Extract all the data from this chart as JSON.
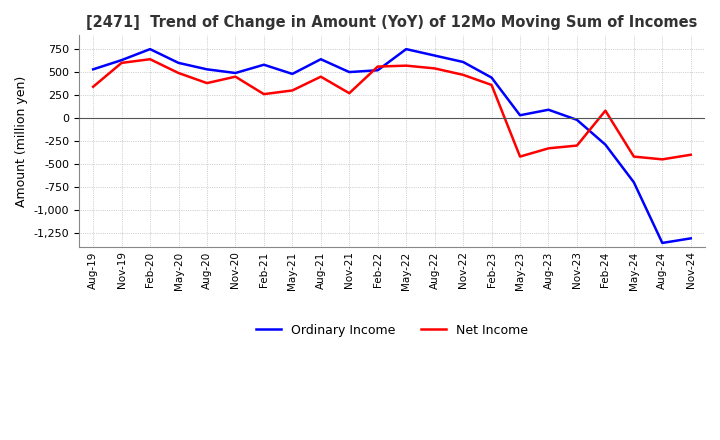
{
  "title": "[2471]  Trend of Change in Amount (YoY) of 12Mo Moving Sum of Incomes",
  "ylabel": "Amount (million yen)",
  "ylim": [
    -1400,
    900
  ],
  "yticks": [
    750,
    500,
    250,
    0,
    -250,
    -500,
    -750,
    -1000,
    -1250
  ],
  "background_color": "#ffffff",
  "grid_color": "#aaaaaa",
  "ordinary_income_color": "#0000ff",
  "net_income_color": "#ff0000",
  "x_labels": [
    "Aug-19",
    "Nov-19",
    "Feb-20",
    "May-20",
    "Aug-20",
    "Nov-20",
    "Feb-21",
    "May-21",
    "Aug-21",
    "Nov-21",
    "Feb-22",
    "May-22",
    "Aug-22",
    "Nov-22",
    "Feb-23",
    "May-23",
    "Aug-23",
    "Nov-23",
    "Feb-24",
    "May-24",
    "Aug-24",
    "Nov-24"
  ],
  "ordinary_income": [
    530,
    630,
    750,
    600,
    530,
    490,
    580,
    480,
    640,
    500,
    520,
    750,
    680,
    610,
    440,
    30,
    90,
    -20,
    -290,
    -700,
    -1360,
    -1310
  ],
  "net_income": [
    340,
    600,
    640,
    490,
    380,
    450,
    260,
    300,
    450,
    270,
    560,
    570,
    540,
    470,
    360,
    -420,
    -330,
    -300,
    80,
    -420,
    -450,
    -400
  ]
}
